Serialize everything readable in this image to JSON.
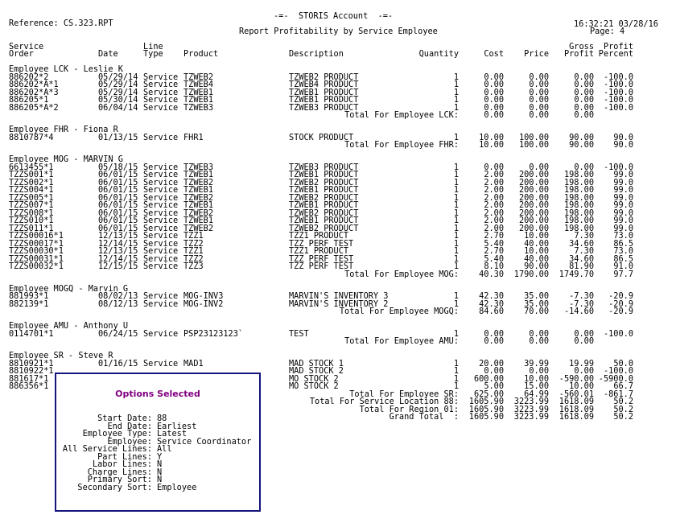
{
  "header": {
    "reference": "Reference: CS.323.RPT",
    "company": "-=-  STORIS Account  -=-",
    "title": "Report Profitability by Service Employee",
    "timestamp": "16:32:21 03/28/16",
    "page": "Page: 4"
  },
  "columns": {
    "order_1": "Service",
    "order_2": "Order",
    "date": "Date",
    "type_1": "Line",
    "type_2": "Type",
    "product": "Product",
    "description": "Description",
    "quantity": "Quantity",
    "cost": "Cost",
    "price": "Price",
    "gp_1": "Gross",
    "gp_2": "Profit",
    "pp_1": "Profit",
    "pp_2": "Percent"
  },
  "groups": [
    {
      "employee": "Employee LCK - Leslie K",
      "rows": [
        {
          "order": "886202*2",
          "date": "05/29/14",
          "type": "Service",
          "product": "TZWEB2",
          "description": "TZWEB2 PRODUCT",
          "qty": "1",
          "cost": "0.00",
          "price": "0.00",
          "gp": "0.00",
          "pp": "-100.0"
        },
        {
          "order": "886202*A*1",
          "date": "05/29/14",
          "type": "Service",
          "product": "TZWEB4",
          "description": "TZWEB4 PRODUCT",
          "qty": "1",
          "cost": "0.00",
          "price": "0.00",
          "gp": "0.00",
          "pp": "-100.0"
        },
        {
          "order": "886202*A*3",
          "date": "05/29/14",
          "type": "Service",
          "product": "TZWEB1",
          "description": "TZWEB1 PRODUCT",
          "qty": "1",
          "cost": "0.00",
          "price": "0.00",
          "gp": "0.00",
          "pp": "-100.0"
        },
        {
          "order": "886205*1",
          "date": "05/30/14",
          "type": "Service",
          "product": "TZWEB1",
          "description": "TZWEB1 PRODUCT",
          "qty": "1",
          "cost": "0.00",
          "price": "0.00",
          "gp": "0.00",
          "pp": "-100.0"
        },
        {
          "order": "886205*A*2",
          "date": "06/04/14",
          "type": "Service",
          "product": "TZWEB3",
          "description": "TZWEB3 PRODUCT",
          "qty": "1",
          "cost": "0.00",
          "price": "0.00",
          "gp": "0.00",
          "pp": "-100.0"
        }
      ],
      "totals": [
        {
          "label": "Total For Employee LCK:",
          "cost": "0.00",
          "price": "0.00",
          "gp": "0.00",
          "pp": ""
        }
      ]
    },
    {
      "employee": "Employee FHR - Fiona R",
      "rows": [
        {
          "order": "8810787*4",
          "date": "01/13/15",
          "type": "Service",
          "product": "FHR1",
          "description": "STOCK PRODUCT",
          "qty": "1",
          "cost": "10.00",
          "price": "100.00",
          "gp": "90.00",
          "pp": "90.0"
        }
      ],
      "totals": [
        {
          "label": "Total For Employee FHR:",
          "cost": "10.00",
          "price": "100.00",
          "gp": "90.00",
          "pp": "90.0"
        }
      ]
    },
    {
      "employee": "Employee MOG - MARVIN G",
      "rows": [
        {
          "order": "6613455*1",
          "date": "05/18/15",
          "type": "Service",
          "product": "TZWEB3",
          "description": "TZWEB3 PRODUCT",
          "qty": "1",
          "cost": "0.00",
          "price": "0.00",
          "gp": "0.00",
          "pp": "-100.0"
        },
        {
          "order": "TZZS001*1",
          "date": "06/01/15",
          "type": "Service",
          "product": "TZWEB1",
          "description": "TZWEB1 PRODUCT",
          "qty": "1",
          "cost": "2.00",
          "price": "200.00",
          "gp": "198.00",
          "pp": "99.0"
        },
        {
          "order": "TZZS002*1",
          "date": "06/01/15",
          "type": "Service",
          "product": "TZWEB2",
          "description": "TZWEB2 PRODUCT",
          "qty": "1",
          "cost": "2.00",
          "price": "200.00",
          "gp": "198.00",
          "pp": "99.0"
        },
        {
          "order": "TZZS004*1",
          "date": "06/01/15",
          "type": "Service",
          "product": "TZWEB1",
          "description": "TZWEB1 PRODUCT",
          "qty": "1",
          "cost": "2.00",
          "price": "200.00",
          "gp": "198.00",
          "pp": "99.0"
        },
        {
          "order": "TZZS005*1",
          "date": "06/01/15",
          "type": "Service",
          "product": "TZWEB2",
          "description": "TZWEB2 PRODUCT",
          "qty": "1",
          "cost": "2.00",
          "price": "200.00",
          "gp": "198.00",
          "pp": "99.0"
        },
        {
          "order": "TZZS007*1",
          "date": "06/01/15",
          "type": "Service",
          "product": "TZWEB1",
          "description": "TZWEB1 PRODUCT",
          "qty": "1",
          "cost": "2.00",
          "price": "200.00",
          "gp": "198.00",
          "pp": "99.0"
        },
        {
          "order": "TZZS008*1",
          "date": "06/01/15",
          "type": "Service",
          "product": "TZWEB2",
          "description": "TZWEB2 PRODUCT",
          "qty": "1",
          "cost": "2.00",
          "price": "200.00",
          "gp": "198.00",
          "pp": "99.0"
        },
        {
          "order": "TZZS010*1",
          "date": "06/01/15",
          "type": "Service",
          "product": "TZWEB1",
          "description": "TZWEB1 PRODUCT",
          "qty": "1",
          "cost": "2.00",
          "price": "200.00",
          "gp": "198.00",
          "pp": "99.0"
        },
        {
          "order": "TZZS011*1",
          "date": "06/01/15",
          "type": "Service",
          "product": "TZWEB2",
          "description": "TZWEB2 PRODUCT",
          "qty": "1",
          "cost": "2.00",
          "price": "200.00",
          "gp": "198.00",
          "pp": "99.0"
        },
        {
          "order": "TZZS00016*1",
          "date": "12/13/15",
          "type": "Service",
          "product": "TZZ1",
          "description": "TZZ1 PRODUCT",
          "qty": "1",
          "cost": "2.70",
          "price": "10.00",
          "gp": "7.30",
          "pp": "73.0"
        },
        {
          "order": "TZZS00017*1",
          "date": "12/14/15",
          "type": "Service",
          "product": "TZZ2",
          "description": "TZZ PERF TEST",
          "qty": "1",
          "cost": "5.40",
          "price": "40.00",
          "gp": "34.60",
          "pp": "86.5"
        },
        {
          "order": "TZZS00030*1",
          "date": "12/13/15",
          "type": "Service",
          "product": "TZZ1",
          "description": "TZZ1 PRODUCT",
          "qty": "1",
          "cost": "2.70",
          "price": "10.00",
          "gp": "7.30",
          "pp": "73.0"
        },
        {
          "order": "TZZS00031*1",
          "date": "12/14/15",
          "type": "Service",
          "product": "TZZ2",
          "description": "TZZ PERF TEST",
          "qty": "1",
          "cost": "5.40",
          "price": "40.00",
          "gp": "34.60",
          "pp": "86.5"
        },
        {
          "order": "TZZS00032*1",
          "date": "12/15/15",
          "type": "Service",
          "product": "TZZ3",
          "description": "TZZ PERF TEST",
          "qty": "1",
          "cost": "8.10",
          "price": "90.00",
          "gp": "81.90",
          "pp": "91.0"
        }
      ],
      "totals": [
        {
          "label": "Total For Employee MOG:",
          "cost": "40.30",
          "price": "1790.00",
          "gp": "1749.70",
          "pp": "97.7"
        }
      ]
    },
    {
      "employee": "Employee MOGQ - Marvin G",
      "rows": [
        {
          "order": "881993*1",
          "date": "08/02/13",
          "type": "Service",
          "product": "MOG-INV3",
          "description": "MARVIN'S INVENTORY 3",
          "qty": "1",
          "cost": "42.30",
          "price": "35.00",
          "gp": "-7.30",
          "pp": "-20.9"
        },
        {
          "order": "882139*1",
          "date": "08/12/13",
          "type": "Service",
          "product": "MOG-INV2",
          "description": "MARVIN'S INVENTORY 2",
          "qty": "1",
          "cost": "42.30",
          "price": "35.00",
          "gp": "-7.30",
          "pp": "-20.9"
        }
      ],
      "totals": [
        {
          "label": "Total For Employee MOGQ:",
          "cost": "84.60",
          "price": "70.00",
          "gp": "-14.60",
          "pp": "-20.9"
        }
      ]
    },
    {
      "employee": "Employee AMU - Anthony U",
      "rows": [
        {
          "order": "0114701*1",
          "date": "06/24/15",
          "type": "Service",
          "product": "PSP23123123`",
          "description": "TEST",
          "qty": "1",
          "cost": "0.00",
          "price": "0.00",
          "gp": "0.00",
          "pp": "-100.0"
        }
      ],
      "totals": [
        {
          "label": "Total For Employee AMU:",
          "cost": "0.00",
          "price": "0.00",
          "gp": "0.00",
          "pp": ""
        }
      ]
    },
    {
      "employee": "Employee SR - Steve R",
      "rows": [
        {
          "order": "8810921*1",
          "date": "01/16/15",
          "type": "Service",
          "product": "MAD1",
          "description": "MAD STOCK 1",
          "qty": "1",
          "cost": "20.00",
          "price": "39.99",
          "gp": "19.99",
          "pp": "50.0"
        },
        {
          "order": "8810922*1",
          "description": "MAD STOCK 2",
          "qty": "1",
          "cost": "0.00",
          "price": "0.00",
          "gp": "0.00",
          "pp": "-100.0"
        },
        {
          "order": "881617*1",
          "description": "MO STOCK 2",
          "qty": "1",
          "cost": "600.00",
          "price": "10.00",
          "gp": "-590.00",
          "pp": "-5900.0"
        },
        {
          "order": "886356*1",
          "description": "MO STOCK 2",
          "qty": "1",
          "cost": "5.00",
          "price": "15.00",
          "gp": "10.00",
          "pp": "66.7"
        }
      ],
      "totals": [
        {
          "label": "Total For Employee SR:",
          "cost": "625.00",
          "price": "64.99",
          "gp": "-560.01",
          "pp": "-861.7"
        },
        {
          "label": "Total For Service Location 88:",
          "cost": "1605.90",
          "price": "3223.99",
          "gp": "1618.09",
          "pp": "50.2"
        },
        {
          "label": "Total For Region 01:",
          "cost": "1605.90",
          "price": "3223.99",
          "gp": "1618.09",
          "pp": "50.2"
        },
        {
          "label": "Grand Total  :",
          "cost": "1605.90",
          "price": "3223.99",
          "gp": "1618.09",
          "pp": "50.2"
        }
      ]
    }
  ],
  "options": {
    "title": "Options Selected",
    "items": [
      {
        "label": "Start Date:",
        "value": "88"
      },
      {
        "label": "End Date:",
        "value": "Earliest"
      },
      {
        "label": "Employee Type:",
        "value": "Latest"
      },
      {
        "label": "Employee:",
        "value": "Service Coordinator"
      },
      {
        "label": "All Service Lines:",
        "value": "All"
      },
      {
        "label": "Part Lines:",
        "value": "Y"
      },
      {
        "label": "Labor Lines:",
        "value": "N"
      },
      {
        "label": "Charge Lines:",
        "value": "N"
      },
      {
        "label": "Primary Sort:",
        "value": "N"
      },
      {
        "label": "Secondary Sort:",
        "value": "Employee"
      }
    ],
    "border_color": "#14147a",
    "title_color": "#800080"
  }
}
